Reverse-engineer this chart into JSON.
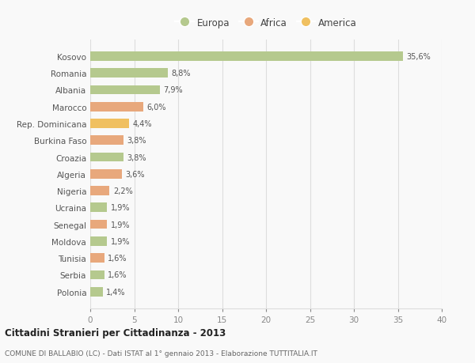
{
  "countries": [
    "Kosovo",
    "Romania",
    "Albania",
    "Marocco",
    "Rep. Dominicana",
    "Burkina Faso",
    "Croazia",
    "Algeria",
    "Nigeria",
    "Ucraina",
    "Senegal",
    "Moldova",
    "Tunisia",
    "Serbia",
    "Polonia"
  ],
  "values": [
    35.6,
    8.8,
    7.9,
    6.0,
    4.4,
    3.8,
    3.8,
    3.6,
    2.2,
    1.9,
    1.9,
    1.9,
    1.6,
    1.6,
    1.4
  ],
  "labels": [
    "35,6%",
    "8,8%",
    "7,9%",
    "6,0%",
    "4,4%",
    "3,8%",
    "3,8%",
    "3,6%",
    "2,2%",
    "1,9%",
    "1,9%",
    "1,9%",
    "1,6%",
    "1,6%",
    "1,4%"
  ],
  "colors": [
    "#b5c98e",
    "#b5c98e",
    "#b5c98e",
    "#e8a87c",
    "#f0c060",
    "#e8a87c",
    "#b5c98e",
    "#e8a87c",
    "#e8a87c",
    "#b5c98e",
    "#e8a87c",
    "#b5c98e",
    "#e8a87c",
    "#b5c98e",
    "#b5c98e"
  ],
  "legend": {
    "Europa": "#b5c98e",
    "Africa": "#e8a87c",
    "America": "#f0c060"
  },
  "title1": "Cittadini Stranieri per Cittadinanza - 2013",
  "title2": "COMUNE DI BALLABIO (LC) - Dati ISTAT al 1° gennaio 2013 - Elaborazione TUTTITALIA.IT",
  "xlim": [
    0,
    40
  ],
  "xticks": [
    0,
    5,
    10,
    15,
    20,
    25,
    30,
    35,
    40
  ],
  "background_color": "#f9f9f9",
  "grid_color": "#dddddd",
  "bar_height": 0.55
}
